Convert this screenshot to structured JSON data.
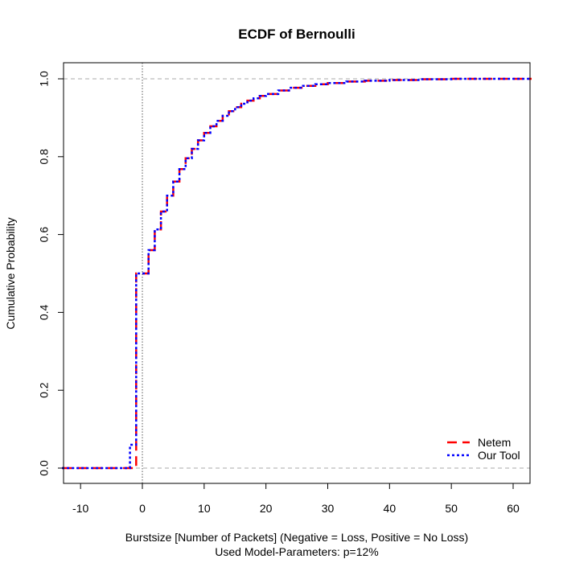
{
  "chart_data": {
    "type": "line",
    "title": "ECDF of Bernoulli",
    "xlabel": "Burstsize [Number of Packets] (Negative = Loss, Positive = No Loss)",
    "xlabel_line2": "Used Model-Parameters: p=12%",
    "ylabel": "Cumulative Probability",
    "xlim": [
      -13,
      63
    ],
    "ylim": [
      -0.04,
      1.04
    ],
    "x_ticks": [
      -10,
      0,
      10,
      20,
      30,
      40,
      50,
      60
    ],
    "x_tick_labels": [
      "-10",
      "0",
      "10",
      "20",
      "30",
      "40",
      "50",
      "60"
    ],
    "y_ticks": [
      0.0,
      0.2,
      0.4,
      0.6,
      0.8,
      1.0
    ],
    "y_tick_labels": [
      "0.0",
      "0.2",
      "0.4",
      "0.6",
      "0.8",
      "1.0"
    ],
    "reference_lines": {
      "horizontal": [
        0,
        1
      ],
      "vertical": [
        0
      ]
    },
    "legend": {
      "position": "bottom-right",
      "entries": [
        {
          "label": "Netem",
          "color": "#ff0000",
          "dash": "long-dash"
        },
        {
          "label": "Our Tool",
          "color": "#0000ff",
          "dash": "dotted"
        }
      ]
    },
    "model": {
      "p": 0.12
    },
    "series": [
      {
        "name": "Netem",
        "color": "#ff0000",
        "x": [
          -13,
          -2,
          -1,
          1,
          2,
          3,
          4,
          5,
          6,
          7,
          8,
          9,
          10,
          11,
          12,
          13,
          14,
          15,
          16,
          17,
          18,
          19,
          20,
          22,
          24,
          26,
          28,
          30,
          33,
          36,
          40,
          45,
          50,
          63
        ],
        "y": [
          0.0,
          0.0,
          0.5,
          0.56,
          0.613,
          0.659,
          0.7,
          0.736,
          0.768,
          0.796,
          0.82,
          0.842,
          0.861,
          0.878,
          0.892,
          0.905,
          0.917,
          0.927,
          0.936,
          0.944,
          0.95,
          0.956,
          0.961,
          0.97,
          0.977,
          0.982,
          0.986,
          0.989,
          0.993,
          0.995,
          0.997,
          0.999,
          1.0,
          1.0
        ]
      },
      {
        "name": "Our Tool",
        "color": "#0000ff",
        "x": [
          -13,
          -3,
          -2,
          -1,
          1,
          2,
          3,
          4,
          5,
          6,
          7,
          8,
          9,
          10,
          11,
          12,
          13,
          14,
          15,
          16,
          17,
          18,
          19,
          20,
          22,
          24,
          26,
          28,
          30,
          33,
          36,
          40,
          45,
          50,
          63
        ],
        "y": [
          0.0,
          0.0,
          0.06,
          0.5,
          0.56,
          0.613,
          0.659,
          0.7,
          0.736,
          0.768,
          0.796,
          0.82,
          0.842,
          0.861,
          0.878,
          0.892,
          0.905,
          0.917,
          0.927,
          0.936,
          0.944,
          0.95,
          0.956,
          0.961,
          0.97,
          0.977,
          0.982,
          0.986,
          0.989,
          0.993,
          0.995,
          0.997,
          0.999,
          1.0,
          1.0
        ]
      }
    ]
  }
}
